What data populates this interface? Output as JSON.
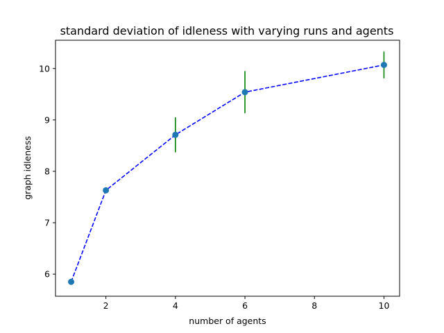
{
  "chart_data": {
    "type": "line",
    "title": "standard deviation of idleness with varying runs and agents",
    "xlabel": "number of agents",
    "ylabel": "graph idleness",
    "xlim": [
      0.55,
      10.45
    ],
    "ylim": [
      5.57,
      10.55
    ],
    "xticks": [
      2,
      4,
      6,
      8,
      10
    ],
    "yticks": [
      6,
      7,
      8,
      9,
      10
    ],
    "grid": false,
    "series": [
      {
        "x": [
          1,
          2,
          4,
          6,
          10
        ],
        "y": [
          5.85,
          7.63,
          8.71,
          9.54,
          10.07
        ],
        "yerr": [
          0,
          0,
          0.34,
          0.41,
          0.26
        ],
        "line_color": "#0000ff",
        "line_style": "dashed",
        "marker_color": "#1f77b4",
        "errorbar_color": "#008000"
      }
    ]
  }
}
